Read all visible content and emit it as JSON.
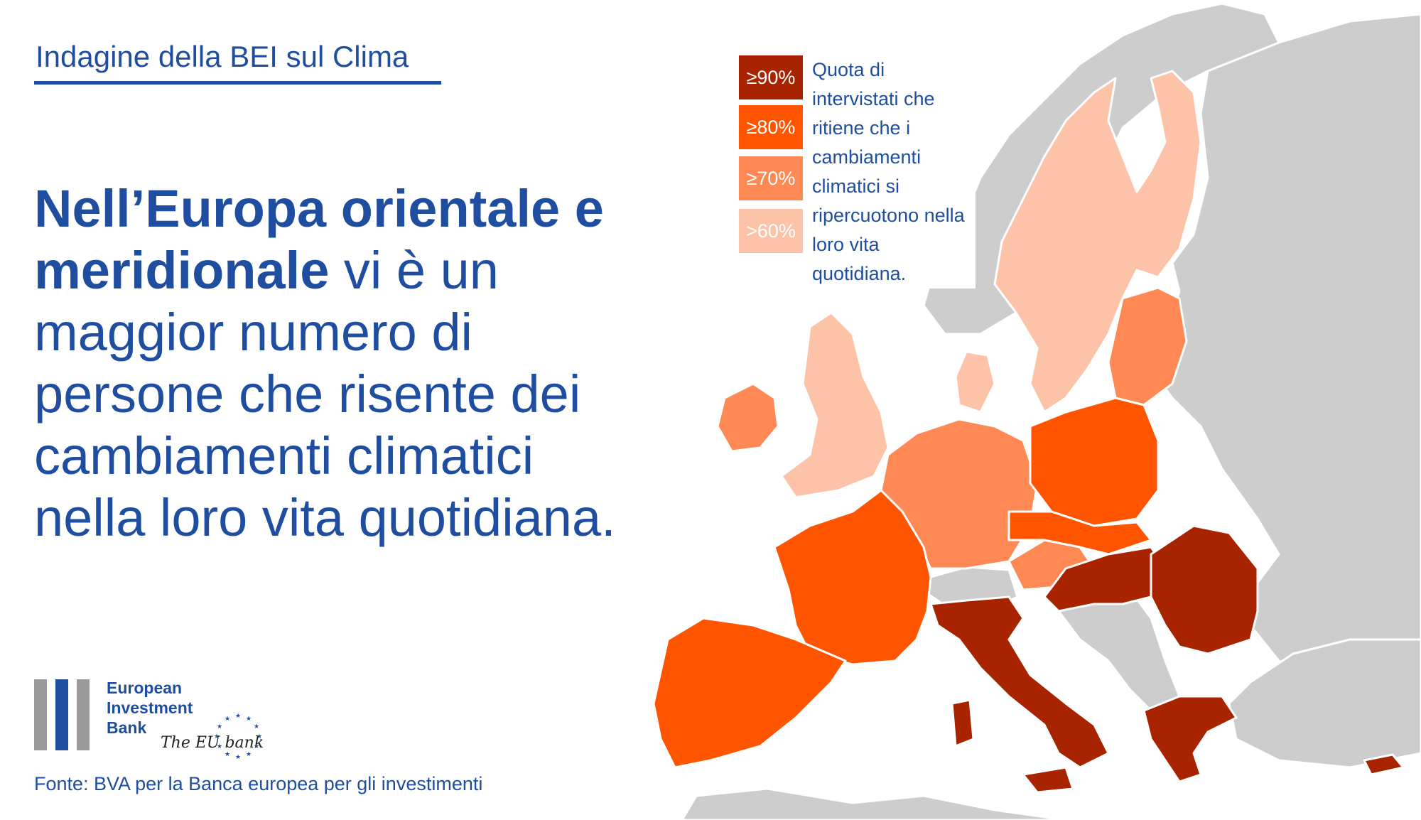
{
  "header": {
    "title": "Indagine della BEI sul Clima"
  },
  "headline": {
    "bold": "Nell’Europa orientale e meridionale",
    "rest": " vi è un maggior numero di persone che risente dei cambiamenti climatici nella loro vita quotidiana."
  },
  "legend": {
    "items": [
      {
        "label": "≥90%",
        "color": "#a82300"
      },
      {
        "label": "≥80%",
        "color": "#ff5500"
      },
      {
        "label": "≥70%",
        "color": "#ff8955"
      },
      {
        "label": ">60%",
        "color": "#fcc3a9"
      }
    ],
    "description": "Quota di intervistati che ritiene che i cambiamenti climatici si ripercuotono nella loro vita quotidiana."
  },
  "logo": {
    "line1": "European",
    "line2": "Investment",
    "line3": "Bank",
    "tagline": "The EU bank"
  },
  "source": "Fonte: BVA per la Banca europea per gli investimenti",
  "colors": {
    "brand_blue": "#1f4ea0",
    "non_eu_grey": "#cdcdcd"
  }
}
